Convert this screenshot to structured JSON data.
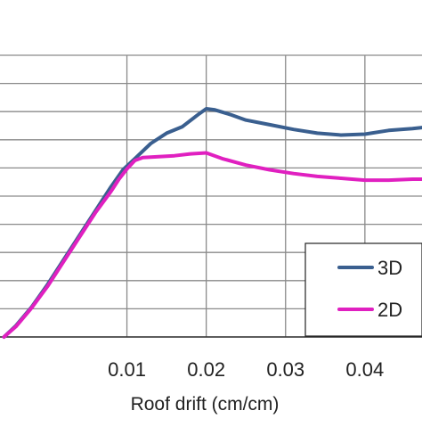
{
  "chart_data": {
    "type": "line",
    "xlabel": "Roof drift (cm/cm)",
    "xlim": [
      -0.006,
      0.0472
    ],
    "xticks": [
      0.01,
      0.02,
      0.03,
      0.04
    ],
    "xtick_labels": [
      "0.01",
      "0.02",
      "0.03",
      "0.04"
    ],
    "grid": true,
    "legend_position": "bottom-right",
    "series": [
      {
        "name": "3D",
        "color": "#3a5f8f",
        "x": [
          -0.0055,
          -0.004,
          -0.002,
          0.0,
          0.002,
          0.004,
          0.006,
          0.008,
          0.0095,
          0.011,
          0.013,
          0.015,
          0.017,
          0.019,
          0.02,
          0.021,
          0.023,
          0.025,
          0.028,
          0.031,
          0.034,
          0.037,
          0.04,
          0.043,
          0.046,
          0.0472
        ],
        "y": [
          0.0,
          0.6,
          1.6,
          2.8,
          4.1,
          5.4,
          6.7,
          8.0,
          8.9,
          9.5,
          10.3,
          10.85,
          11.2,
          11.85,
          12.15,
          12.1,
          11.85,
          11.55,
          11.3,
          11.05,
          10.85,
          10.75,
          10.8,
          11.0,
          11.1,
          11.15
        ]
      },
      {
        "name": "2D",
        "color": "#e020c0",
        "x": [
          -0.0055,
          -0.004,
          -0.002,
          0.0,
          0.002,
          0.004,
          0.006,
          0.008,
          0.009,
          0.01,
          0.011,
          0.012,
          0.014,
          0.016,
          0.018,
          0.02,
          0.022,
          0.025,
          0.028,
          0.031,
          0.034,
          0.037,
          0.04,
          0.043,
          0.046,
          0.0472
        ],
        "y": [
          0.0,
          0.55,
          1.55,
          2.7,
          4.0,
          5.3,
          6.6,
          7.75,
          8.4,
          8.95,
          9.4,
          9.55,
          9.6,
          9.65,
          9.75,
          9.8,
          9.5,
          9.15,
          8.9,
          8.7,
          8.55,
          8.45,
          8.35,
          8.35,
          8.4,
          8.4
        ]
      }
    ]
  }
}
